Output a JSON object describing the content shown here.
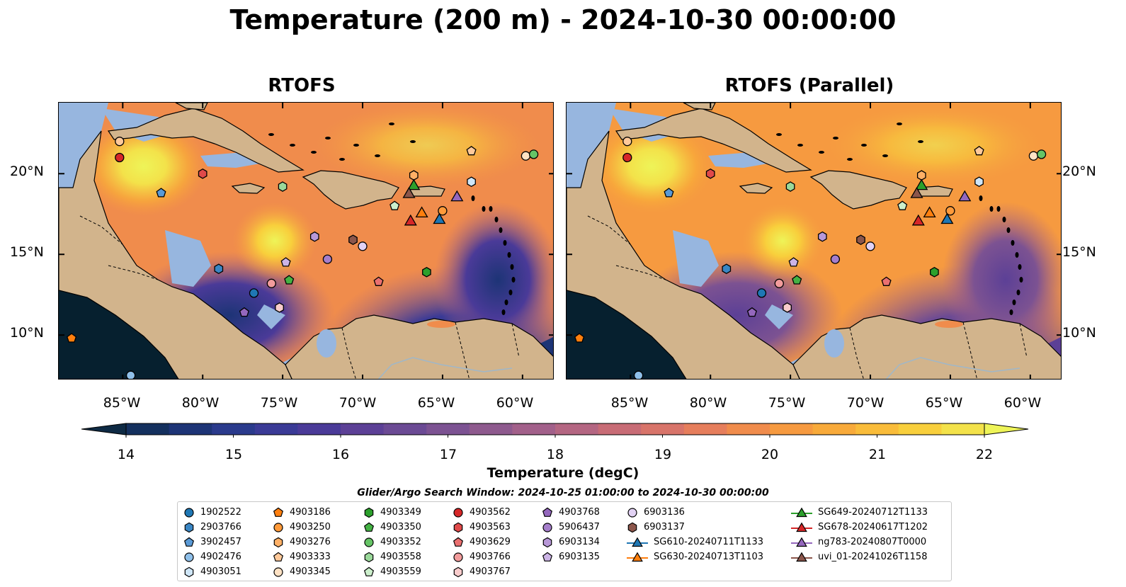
{
  "title": "Temperature (200 m) - 2024-10-30 00:00:00",
  "panels": [
    {
      "title": "RTOFS",
      "variant": "rtofs"
    },
    {
      "title": "RTOFS (Parallel)",
      "variant": "parallel"
    }
  ],
  "lat_labels": [
    "20°N",
    "15°N",
    "10°N"
  ],
  "lon_labels": [
    "85°W",
    "80°W",
    "75°W",
    "70°W",
    "65°W",
    "60°W"
  ],
  "colorbar": {
    "label": "Temperature (degC)",
    "ticks": [
      "14",
      "15",
      "16",
      "17",
      "18",
      "19",
      "20",
      "21",
      "22"
    ],
    "colors": [
      "#0e2a44",
      "#14305e",
      "#1d3476",
      "#2a3a8c",
      "#3a3a96",
      "#4a3a98",
      "#5c4096",
      "#6b4a94",
      "#7c5292",
      "#8e5a8e",
      "#a2608a",
      "#b46682",
      "#c86c76",
      "#d8746a",
      "#e67e5c",
      "#f08c4c",
      "#f69a40",
      "#f8aa3a",
      "#f9bc3a",
      "#f8cf3c",
      "#f3e24a",
      "#eef458"
    ]
  },
  "search_window": "Glider/Argo Search Window: 2024-10-25 01:00:00 to 2024-10-30 00:00:00",
  "legend": [
    [
      {
        "label": "1902522",
        "marker": "circle",
        "color": "#1f77b4"
      },
      {
        "label": "2903766",
        "marker": "hexagon",
        "color": "#3a86c4"
      },
      {
        "label": "3902457",
        "marker": "pentagon",
        "color": "#5a9ad6"
      },
      {
        "label": "4902476",
        "marker": "circle",
        "color": "#8fc0ea"
      },
      {
        "label": "4903051",
        "marker": "hexagon",
        "color": "#cfe6f8"
      }
    ],
    [
      {
        "label": "4903186",
        "marker": "pentagon",
        "color": "#ff7f0e"
      },
      {
        "label": "4903250",
        "marker": "circle",
        "color": "#ff9a3a"
      },
      {
        "label": "4903276",
        "marker": "hexagon",
        "color": "#ffb066"
      },
      {
        "label": "4903333",
        "marker": "pentagon",
        "color": "#ffc99a"
      },
      {
        "label": "4903345",
        "marker": "circle",
        "color": "#ffe2c4"
      }
    ],
    [
      {
        "label": "4903349",
        "marker": "hexagon",
        "color": "#2ca02c"
      },
      {
        "label": "4903350",
        "marker": "pentagon",
        "color": "#44b244"
      },
      {
        "label": "4903352",
        "marker": "circle",
        "color": "#66c466"
      },
      {
        "label": "4903558",
        "marker": "hexagon",
        "color": "#9ad89a"
      },
      {
        "label": "4903559",
        "marker": "pentagon",
        "color": "#ccefcc"
      }
    ],
    [
      {
        "label": "4903562",
        "marker": "circle",
        "color": "#d62728"
      },
      {
        "label": "4903563",
        "marker": "hexagon",
        "color": "#e04a4a"
      },
      {
        "label": "4903629",
        "marker": "pentagon",
        "color": "#ea7070"
      },
      {
        "label": "4903766",
        "marker": "circle",
        "color": "#f29c9c"
      },
      {
        "label": "4903767",
        "marker": "hexagon",
        "color": "#f9cccc"
      }
    ],
    [
      {
        "label": "4903768",
        "marker": "pentagon",
        "color": "#9467bd"
      },
      {
        "label": "5906437",
        "marker": "circle",
        "color": "#a57ecb"
      },
      {
        "label": "6903134",
        "marker": "hexagon",
        "color": "#b898d8"
      },
      {
        "label": "6903135",
        "marker": "pentagon",
        "color": "#ccb4e6"
      }
    ],
    [
      {
        "label": "6903136",
        "marker": "circle",
        "color": "#e2d2f4"
      },
      {
        "label": "6903137",
        "marker": "hexagon",
        "color": "#8c564b"
      },
      {
        "label": "SG610-20240711T1133",
        "marker": "triangle-line",
        "color": "#1f77b4"
      },
      {
        "label": "SG630-20240713T1103",
        "marker": "triangle-line",
        "color": "#ff7f0e"
      }
    ],
    [
      {
        "label": "SG649-20240712T1133",
        "marker": "triangle-line",
        "color": "#2ca02c"
      },
      {
        "label": "SG678-20240617T1202",
        "marker": "triangle-line",
        "color": "#d62728"
      },
      {
        "label": "ng783-20240807T0000",
        "marker": "triangle-line",
        "color": "#9467bd"
      },
      {
        "label": "uvi_01-20241026T1158",
        "marker": "triangle-line",
        "color": "#8c564b"
      }
    ]
  ],
  "markers": [
    {
      "id": "1902522",
      "lon": -76.8,
      "lat": 12.6
    },
    {
      "id": "2903766",
      "lon": -79.0,
      "lat": 14.1
    },
    {
      "id": "3902457",
      "lon": -82.6,
      "lat": 18.8
    },
    {
      "id": "4902476",
      "lon": -84.5,
      "lat": 7.5
    },
    {
      "id": "4903051",
      "lon": -63.2,
      "lat": 19.5
    },
    {
      "id": "4903186",
      "lon": -88.2,
      "lat": 9.8
    },
    {
      "id": "4903250",
      "lon": -65.0,
      "lat": 17.7
    },
    {
      "id": "4903276",
      "lon": -66.8,
      "lat": 19.9
    },
    {
      "id": "4903333",
      "lon": -63.2,
      "lat": 21.4
    },
    {
      "id": "4903345",
      "lon": -59.8,
      "lat": 21.1
    },
    {
      "id": "4903349",
      "lon": -66.0,
      "lat": 13.9
    },
    {
      "id": "4903350",
      "lon": -74.6,
      "lat": 13.4
    },
    {
      "id": "4903352",
      "lon": -59.3,
      "lat": 21.2
    },
    {
      "id": "4903558",
      "lon": -75.0,
      "lat": 19.2
    },
    {
      "id": "4903559",
      "lon": -68.0,
      "lat": 18.0
    },
    {
      "id": "4903562",
      "lon": -85.2,
      "lat": 21.0
    },
    {
      "id": "4903563",
      "lon": -80.0,
      "lat": 20.0
    },
    {
      "id": "4903629",
      "lon": -69.0,
      "lat": 13.3
    },
    {
      "id": "4903766",
      "lon": -75.7,
      "lat": 13.2
    },
    {
      "id": "4903767",
      "lon": -75.2,
      "lat": 11.7
    },
    {
      "id": "4903768",
      "lon": -77.4,
      "lat": 11.4
    },
    {
      "id": "5906437",
      "lon": -72.2,
      "lat": 14.7
    },
    {
      "id": "6903134",
      "lon": -73.0,
      "lat": 16.1
    },
    {
      "id": "6903135",
      "lon": -74.8,
      "lat": 14.5
    },
    {
      "id": "6903136",
      "lon": -70.0,
      "lat": 15.5
    },
    {
      "id": "6903137",
      "lon": -70.6,
      "lat": 15.9
    },
    {
      "id": "4903562b",
      "lon": -85.2,
      "lat": 22.0
    },
    {
      "id": "SG610-20240711T1133",
      "lon": -65.2,
      "lat": 17.2
    },
    {
      "id": "SG630-20240713T1103",
      "lon": -66.3,
      "lat": 17.6
    },
    {
      "id": "SG649-20240712T1133",
      "lon": -66.8,
      "lat": 19.3
    },
    {
      "id": "SG678-20240617T1202",
      "lon": -67.0,
      "lat": 17.1
    },
    {
      "id": "ng783-20240807T0000",
      "lon": -64.1,
      "lat": 18.6
    },
    {
      "id": "uvi_01-20241026T1158",
      "lon": -67.1,
      "lat": 18.8
    }
  ]
}
